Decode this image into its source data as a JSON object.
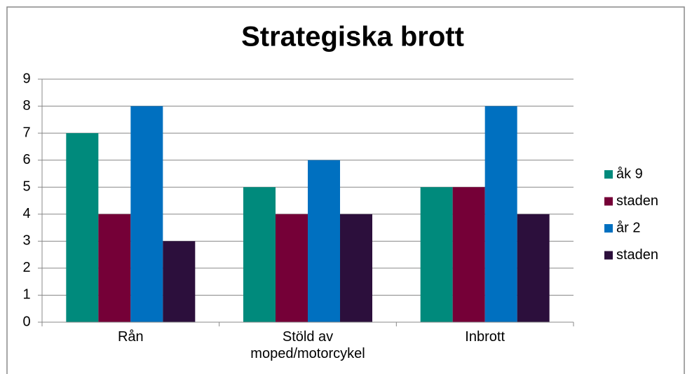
{
  "chart_data": {
    "type": "bar",
    "title": "Strategiska brott",
    "categories": [
      "Rån",
      "Stöld av moped/motorcykel",
      "Inbrott"
    ],
    "series": [
      {
        "name": "åk 9",
        "color": "#008a7c",
        "values": [
          7,
          5,
          5
        ]
      },
      {
        "name": "staden",
        "color": "#750037",
        "values": [
          4,
          4,
          5
        ]
      },
      {
        "name": "år 2",
        "color": "#0070c0",
        "values": [
          8,
          6,
          8
        ]
      },
      {
        "name": "staden",
        "color": "#2c0f3c",
        "values": [
          3,
          4,
          4
        ]
      }
    ],
    "ylim": [
      0,
      9
    ],
    "yticks": [
      0,
      1,
      2,
      3,
      4,
      5,
      6,
      7,
      8,
      9
    ],
    "grid": true,
    "legend": "right"
  }
}
